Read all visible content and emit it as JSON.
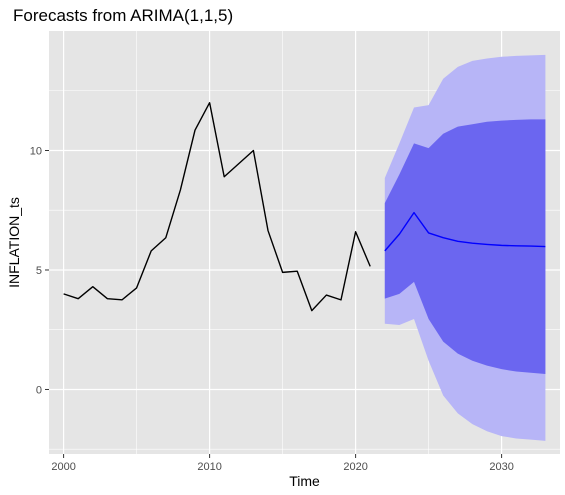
{
  "chart_data": {
    "type": "line",
    "title": "Forecasts from ARIMA(1,1,5)",
    "xlabel": "Time",
    "ylabel": "INFLATION_ts",
    "xlim": [
      1999,
      2034
    ],
    "ylim": [
      -2.7,
      15.0
    ],
    "x_ticks": [
      2000,
      2010,
      2020,
      2030
    ],
    "y_ticks": [
      0,
      5,
      10
    ],
    "grid": true,
    "legend": "none",
    "colors": {
      "panel": "#e5e5e5",
      "grid": "#ffffff",
      "observed": "#000000",
      "forecast": "#0000ff",
      "band_80": "#6b66f0",
      "band_95": "#b7b5f7"
    },
    "series": [
      {
        "x": [
          2000,
          2001,
          2002,
          2003,
          2004,
          2005,
          2006,
          2007,
          2008,
          2009,
          2010,
          2011,
          2012,
          2013,
          2014,
          2015,
          2016,
          2017,
          2018,
          2019,
          2020,
          2021
        ],
        "values": [
          4.0,
          3.8,
          4.3,
          3.8,
          3.75,
          4.25,
          5.8,
          6.35,
          8.35,
          10.85,
          12.0,
          8.9,
          9.45,
          10.0,
          6.65,
          4.9,
          4.95,
          3.3,
          3.95,
          3.75,
          6.6,
          5.15
        ]
      },
      {
        "x": [
          2022,
          2023,
          2024,
          2025,
          2026,
          2027,
          2028,
          2029,
          2030,
          2031,
          2032,
          2033
        ],
        "values": [
          5.8,
          6.5,
          7.4,
          6.55,
          6.35,
          6.2,
          6.12,
          6.07,
          6.03,
          6.01,
          6.0,
          5.98
        ],
        "lower_80": [
          3.8,
          4.0,
          4.5,
          2.95,
          2.0,
          1.5,
          1.2,
          1.0,
          0.85,
          0.75,
          0.7,
          0.65
        ],
        "upper_80": [
          7.8,
          9.0,
          10.3,
          10.1,
          10.7,
          11.0,
          11.1,
          11.2,
          11.25,
          11.28,
          11.3,
          11.3
        ],
        "lower_95": [
          2.75,
          2.7,
          2.95,
          1.2,
          -0.25,
          -1.0,
          -1.45,
          -1.75,
          -1.95,
          -2.05,
          -2.1,
          -2.15
        ],
        "upper_95": [
          8.85,
          10.3,
          11.8,
          11.9,
          13.0,
          13.5,
          13.75,
          13.85,
          13.92,
          13.96,
          13.98,
          14.0
        ]
      }
    ]
  }
}
